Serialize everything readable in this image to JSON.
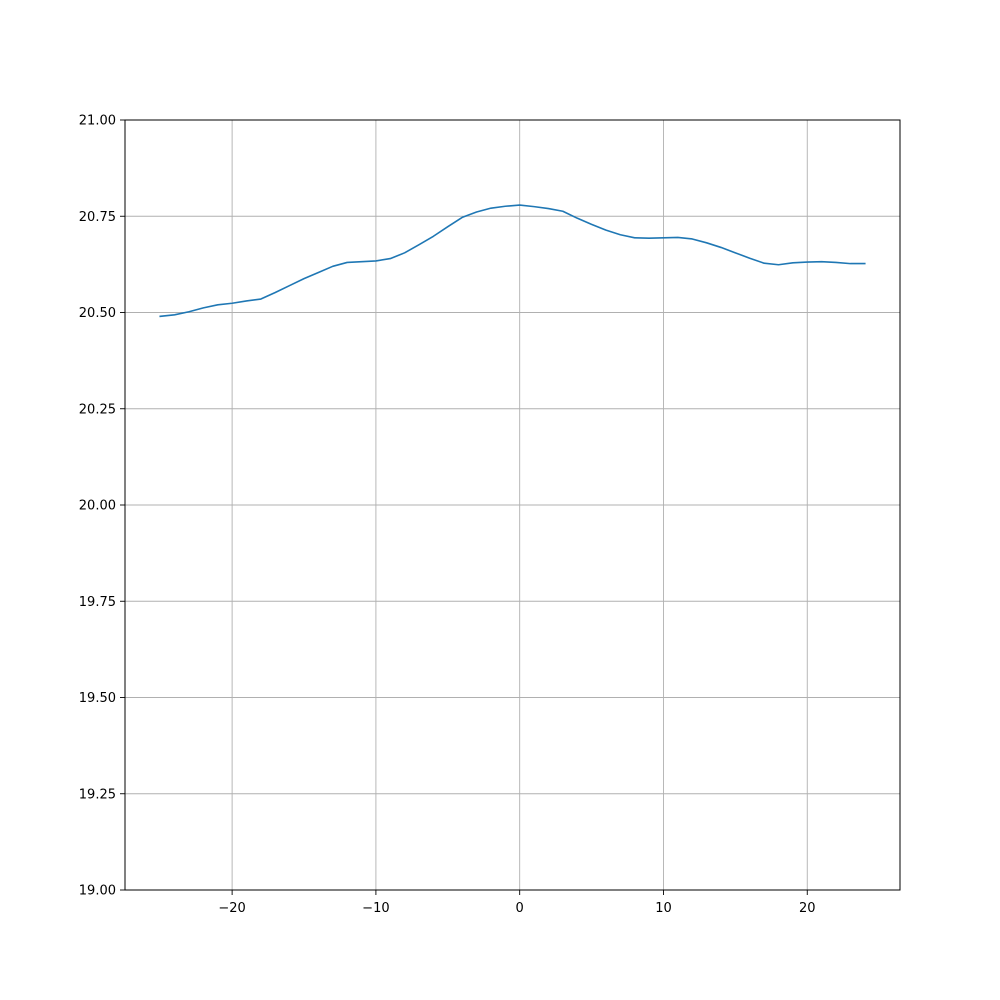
{
  "chart_data": {
    "type": "line",
    "title": "",
    "xlabel": "",
    "ylabel": "",
    "xlim": [
      -27.45,
      26.45
    ],
    "ylim": [
      19.0,
      21.0
    ],
    "grid": true,
    "x_ticks": [
      -20,
      -10,
      0,
      10,
      20
    ],
    "x_tick_labels": [
      "−20",
      "−10",
      "0",
      "10",
      "20"
    ],
    "y_ticks": [
      19.0,
      19.25,
      19.5,
      19.75,
      20.0,
      20.25,
      20.5,
      20.75,
      21.0
    ],
    "y_tick_labels": [
      "19.00",
      "19.25",
      "19.50",
      "19.75",
      "20.00",
      "20.25",
      "20.50",
      "20.75",
      "21.00"
    ],
    "series": [
      {
        "color": "#1f77b4",
        "x": [
          -25,
          -24,
          -23,
          -22,
          -21,
          -20,
          -19,
          -18,
          -17,
          -16,
          -15,
          -14,
          -13,
          -12,
          -11,
          -10,
          -9,
          -8,
          -7,
          -6,
          -5,
          -4,
          -3,
          -2,
          -1,
          0,
          1,
          2,
          3,
          4,
          5,
          6,
          7,
          8,
          9,
          10,
          11,
          12,
          13,
          14,
          15,
          16,
          17,
          18,
          19,
          20,
          21,
          22,
          23,
          24
        ],
        "y": [
          20.49,
          20.494,
          20.502,
          20.512,
          20.52,
          20.524,
          20.53,
          20.535,
          20.552,
          20.57,
          20.588,
          20.604,
          20.62,
          20.63,
          20.632,
          20.634,
          20.64,
          20.655,
          20.676,
          20.698,
          20.723,
          20.747,
          20.761,
          20.771,
          20.776,
          20.779,
          20.775,
          20.77,
          20.763,
          20.745,
          20.729,
          20.714,
          20.702,
          20.694,
          20.693,
          20.694,
          20.695,
          20.691,
          20.681,
          20.669,
          20.655,
          20.641,
          20.628,
          20.624,
          20.629,
          20.631,
          20.632,
          20.63,
          20.627,
          20.627
        ]
      }
    ]
  }
}
